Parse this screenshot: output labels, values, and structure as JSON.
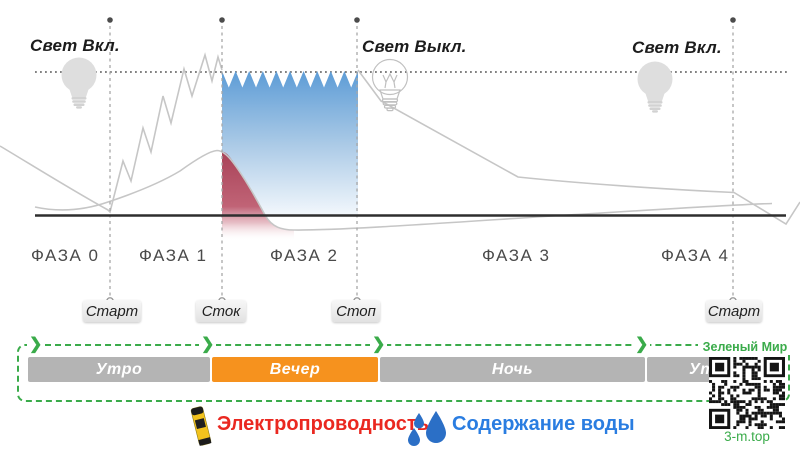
{
  "light_events": [
    {
      "label": "Свет Вкл.",
      "state": "on"
    },
    {
      "label": "Свет Выкл.",
      "state": "off"
    },
    {
      "label": "Свет Вкл.",
      "state": "on"
    }
  ],
  "phases": [
    {
      "label": "ФАЗА 0"
    },
    {
      "label": "ФАЗА 1"
    },
    {
      "label": "ФАЗА 2"
    },
    {
      "label": "ФАЗА 3"
    },
    {
      "label": "ФАЗА 4"
    }
  ],
  "markers": [
    {
      "label": "Старт"
    },
    {
      "label": "Сток"
    },
    {
      "label": "Стоп"
    },
    {
      "label": "Старт"
    }
  ],
  "timeline": {
    "segments": [
      {
        "label": "Утро",
        "highlight": false,
        "color": "#b4b4b4"
      },
      {
        "label": "Вечер",
        "highlight": true,
        "color": "#f6921e"
      },
      {
        "label": "Ночь",
        "highlight": false,
        "color": "#b4b4b4"
      },
      {
        "label": "Утро",
        "highlight": false,
        "color": "#b4b4b4"
      }
    ]
  },
  "legend": [
    {
      "label": "Электропроводность",
      "color": "#ea2820",
      "icon": "ec-meter-icon"
    },
    {
      "label": "Содержание воды",
      "color": "#2a7de1",
      "icon": "water-drops-icon"
    }
  ],
  "brand": {
    "name": "Зеленый Мир",
    "site": "3-m.top"
  },
  "colors": {
    "accent_green": "#3aab4a",
    "water_fill_top": "#5d9cd6",
    "ec_fill_top": "#a93e53",
    "bar_gray": "#b4b4b4",
    "bar_orange": "#f6921e"
  }
}
